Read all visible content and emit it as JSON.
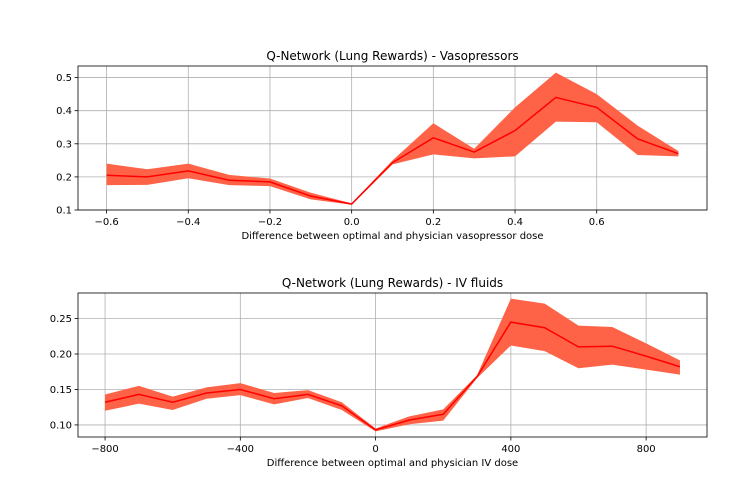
{
  "chart_data": [
    {
      "type": "line",
      "title": "Q-Network (Lung Rewards) - Vasopressors",
      "xlabel": "Difference between optimal and physician vasopressor dose",
      "ylabel": "",
      "xlim": [
        -0.67,
        0.87
      ],
      "ylim": [
        0.1,
        0.535
      ],
      "xticks": [
        -0.6,
        -0.4,
        -0.2,
        0.0,
        0.2,
        0.4,
        0.6
      ],
      "xtick_labels": [
        "−0.6",
        "−0.4",
        "−0.2",
        "0.0",
        "0.2",
        "0.4",
        "0.6"
      ],
      "yticks": [
        0.1,
        0.2,
        0.3,
        0.4,
        0.5
      ],
      "ytick_labels": [
        "0.1",
        "0.2",
        "0.3",
        "0.4",
        "0.5"
      ],
      "grid": true,
      "line_color": "#ff0000",
      "band_color": "#ff6347",
      "x": [
        -0.6,
        -0.5,
        -0.4,
        -0.3,
        -0.2,
        -0.1,
        0.0,
        0.1,
        0.2,
        0.3,
        0.4,
        0.5,
        0.6,
        0.7,
        0.8
      ],
      "values": [
        0.205,
        0.2,
        0.218,
        0.19,
        0.185,
        0.142,
        0.118,
        0.243,
        0.318,
        0.275,
        0.34,
        0.44,
        0.41,
        0.315,
        0.27
      ],
      "lower": [
        0.175,
        0.176,
        0.196,
        0.175,
        0.172,
        0.132,
        0.116,
        0.238,
        0.268,
        0.256,
        0.262,
        0.367,
        0.365,
        0.266,
        0.262
      ],
      "upper": [
        0.24,
        0.223,
        0.24,
        0.206,
        0.195,
        0.152,
        0.12,
        0.25,
        0.362,
        0.285,
        0.41,
        0.515,
        0.45,
        0.355,
        0.278
      ]
    },
    {
      "type": "line",
      "title": "Q-Network (Lung Rewards) - IV fluids",
      "xlabel": "Difference between optimal and physician IV dose",
      "ylabel": "",
      "xlim": [
        -880,
        980
      ],
      "ylim": [
        0.083,
        0.286
      ],
      "xticks": [
        -800,
        -400,
        0,
        400,
        800
      ],
      "xtick_labels": [
        "−800",
        "−400",
        "0",
        "400",
        "800"
      ],
      "yticks": [
        0.1,
        0.15,
        0.2,
        0.25
      ],
      "ytick_labels": [
        "0.10",
        "0.15",
        "0.20",
        "0.25"
      ],
      "grid": true,
      "line_color": "#ff0000",
      "band_color": "#ff6347",
      "x": [
        -800,
        -700,
        -600,
        -500,
        -400,
        -300,
        -200,
        -100,
        0,
        100,
        200,
        300,
        400,
        500,
        600,
        700,
        800,
        900
      ],
      "values": [
        0.132,
        0.143,
        0.132,
        0.145,
        0.15,
        0.137,
        0.143,
        0.127,
        0.093,
        0.107,
        0.115,
        0.168,
        0.245,
        0.237,
        0.21,
        0.211,
        0.197,
        0.182
      ],
      "lower": [
        0.12,
        0.13,
        0.121,
        0.137,
        0.142,
        0.129,
        0.138,
        0.121,
        0.091,
        0.101,
        0.106,
        0.166,
        0.212,
        0.204,
        0.18,
        0.185,
        0.178,
        0.171
      ],
      "upper": [
        0.143,
        0.155,
        0.14,
        0.153,
        0.159,
        0.145,
        0.149,
        0.132,
        0.095,
        0.112,
        0.122,
        0.17,
        0.278,
        0.271,
        0.24,
        0.238,
        0.215,
        0.191
      ]
    }
  ]
}
